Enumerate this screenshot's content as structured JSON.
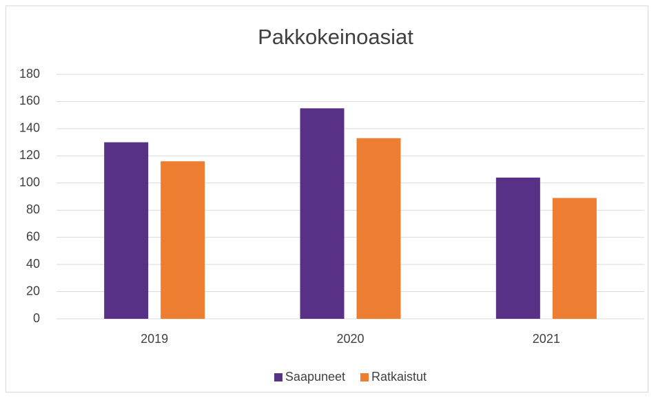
{
  "chart_data": {
    "type": "bar",
    "title": "Pakkokeinoasiat",
    "categories": [
      "2019",
      "2020",
      "2021"
    ],
    "series": [
      {
        "name": "Saapuneet",
        "color": "#583187",
        "values": [
          130,
          155,
          104
        ]
      },
      {
        "name": "Ratkaistut",
        "color": "#ed7d31",
        "values": [
          116,
          133,
          89
        ]
      }
    ],
    "ylim": [
      0,
      180
    ],
    "yticks": [
      0,
      20,
      40,
      60,
      80,
      100,
      120,
      140,
      160,
      180
    ],
    "grid": true,
    "legend": "bottom"
  }
}
